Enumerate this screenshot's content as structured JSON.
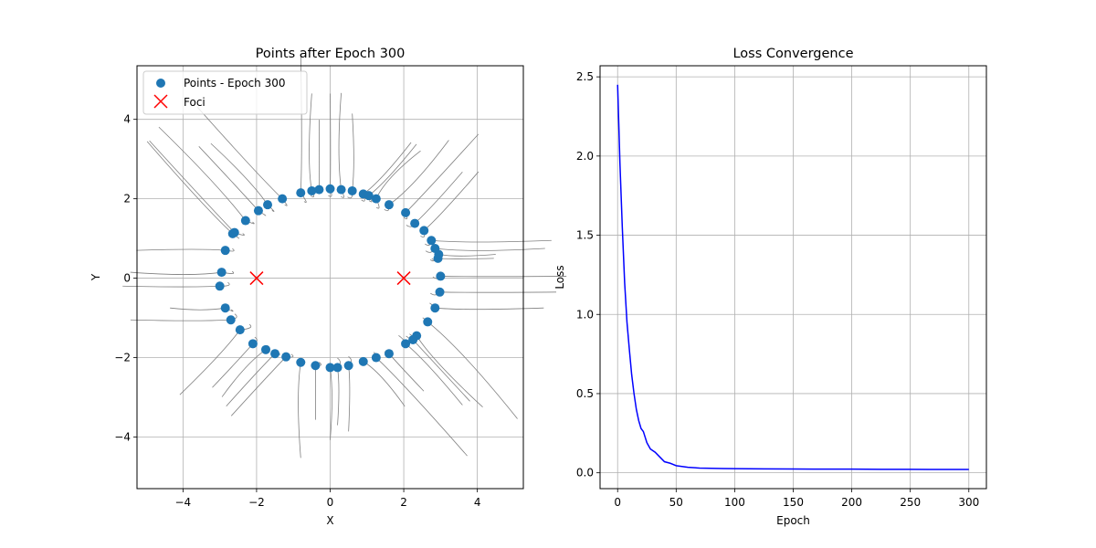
{
  "chart_data": [
    {
      "type": "scatter",
      "title": "Points after Epoch 300",
      "xlabel": "X",
      "ylabel": "Y",
      "xlim": [
        -5.25,
        5.25
      ],
      "ylim": [
        -5.3,
        5.35
      ],
      "xticks": [
        -4,
        -2,
        0,
        2,
        4
      ],
      "yticks": [
        -4,
        -2,
        0,
        2,
        4
      ],
      "xtick_labels": [
        "−4",
        "−2",
        "0",
        "2",
        "4"
      ],
      "ytick_labels": [
        "−4",
        "−2",
        "0",
        "2",
        "4"
      ],
      "grid": true,
      "legend_position": "top-left",
      "series": [
        {
          "name": "Points - Epoch 300",
          "marker": "circle",
          "color": "#1f77b4",
          "ellipse": {
            "a": 3.0,
            "b": 2.24
          },
          "points": [
            [
              0.0,
              2.25
            ],
            [
              0.3,
              2.23
            ],
            [
              0.6,
              2.2
            ],
            [
              0.9,
              2.12
            ],
            [
              1.25,
              2.0
            ],
            [
              1.6,
              1.85
            ],
            [
              2.05,
              1.65
            ],
            [
              2.3,
              1.38
            ],
            [
              2.55,
              1.2
            ],
            [
              2.75,
              0.95
            ],
            [
              2.85,
              0.75
            ],
            [
              2.93,
              0.5
            ],
            [
              3.0,
              0.05
            ],
            [
              2.98,
              -0.35
            ],
            [
              2.85,
              -0.75
            ],
            [
              2.65,
              -1.1
            ],
            [
              2.35,
              -1.45
            ],
            [
              2.05,
              -1.65
            ],
            [
              1.6,
              -1.9
            ],
            [
              1.25,
              -2.0
            ],
            [
              0.9,
              -2.1
            ],
            [
              0.5,
              -2.2
            ],
            [
              0.0,
              -2.25
            ],
            [
              -0.4,
              -2.2
            ],
            [
              -0.8,
              -2.12
            ],
            [
              -1.2,
              -1.98
            ],
            [
              -1.75,
              -1.8
            ],
            [
              -2.1,
              -1.65
            ],
            [
              -2.45,
              -1.3
            ],
            [
              -2.7,
              -1.05
            ],
            [
              -2.85,
              -0.75
            ],
            [
              -3.0,
              -0.2
            ],
            [
              -2.95,
              0.15
            ],
            [
              -2.85,
              0.7
            ],
            [
              -2.6,
              1.15
            ],
            [
              -2.3,
              1.45
            ],
            [
              -1.95,
              1.7
            ],
            [
              -1.7,
              1.85
            ],
            [
              -1.3,
              2.0
            ],
            [
              -0.8,
              2.15
            ],
            [
              -0.3,
              2.23
            ],
            [
              -0.5,
              2.2
            ],
            [
              1.05,
              2.08
            ],
            [
              2.25,
              -1.55
            ],
            [
              -2.65,
              1.12
            ],
            [
              -1.5,
              -1.9
            ],
            [
              0.2,
              -2.25
            ],
            [
              2.95,
              0.6
            ]
          ]
        },
        {
          "name": "Foci",
          "marker": "x",
          "color": "#ff0000",
          "points": [
            [
              -2,
              0
            ],
            [
              2,
              0
            ]
          ]
        }
      ]
    },
    {
      "type": "line",
      "title": "Loss Convergence",
      "xlabel": "Epoch",
      "ylabel": "Loss",
      "xlim": [
        -15,
        315
      ],
      "ylim": [
        -0.1,
        2.57
      ],
      "xticks": [
        0,
        50,
        100,
        150,
        200,
        250,
        300
      ],
      "yticks": [
        0.0,
        0.5,
        1.0,
        1.5,
        2.0,
        2.5
      ],
      "xtick_labels": [
        "0",
        "50",
        "100",
        "150",
        "200",
        "250",
        "300"
      ],
      "ytick_labels": [
        "0.0",
        "0.5",
        "1.0",
        "1.5",
        "2.0",
        "2.5"
      ],
      "grid": true,
      "series": [
        {
          "color": "#0000ff",
          "x": [
            0,
            2,
            4,
            6,
            8,
            10,
            12,
            14,
            16,
            18,
            20,
            22,
            25,
            28,
            32,
            36,
            40,
            45,
            50,
            55,
            60,
            70,
            80,
            90,
            100,
            125,
            150,
            175,
            200,
            225,
            250,
            275,
            300
          ],
          "y": [
            2.45,
            1.95,
            1.55,
            1.2,
            0.95,
            0.78,
            0.62,
            0.5,
            0.4,
            0.33,
            0.28,
            0.26,
            0.19,
            0.15,
            0.13,
            0.1,
            0.07,
            0.06,
            0.045,
            0.04,
            0.035,
            0.03,
            0.028,
            0.027,
            0.026,
            0.025,
            0.024,
            0.023,
            0.023,
            0.022,
            0.022,
            0.021,
            0.021
          ]
        }
      ]
    }
  ]
}
